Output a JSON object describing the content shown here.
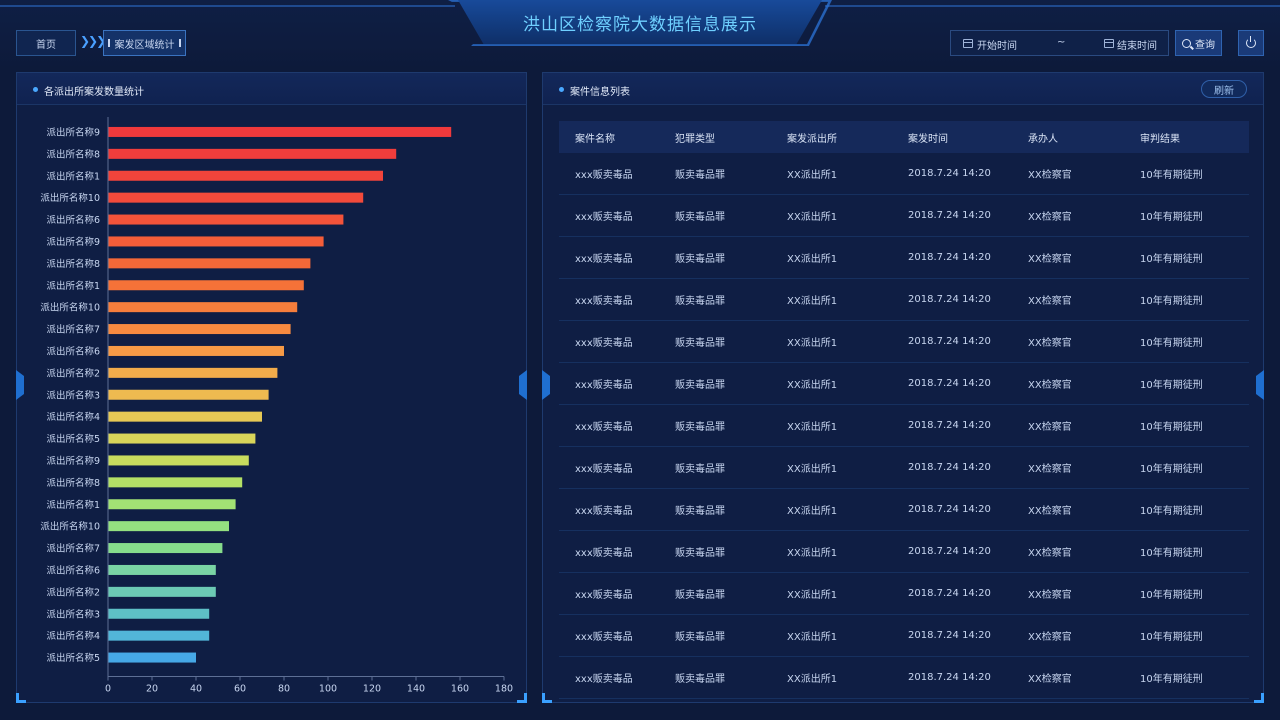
{
  "header": {
    "title": "洪山区检察院大数据信息展示",
    "breadcrumb": {
      "home": "首页",
      "current": "案发区域统计"
    },
    "date_range": {
      "start_placeholder": "开始时间",
      "separator": "~",
      "end_placeholder": "结束时间"
    },
    "query_label": "查询"
  },
  "left_panel": {
    "title": "各派出所案发数量统计"
  },
  "right_panel": {
    "title": "案件信息列表",
    "refresh_label": "刷新",
    "columns": [
      "案件名称",
      "犯罪类型",
      "案发派出所",
      "案发时间",
      "承办人",
      "审判结果"
    ],
    "rows": [
      [
        "xxx贩卖毒品",
        "贩卖毒品罪",
        "XX派出所1",
        "2018.7.24 14:20",
        "XX检察官",
        "10年有期徒刑"
      ],
      [
        "xxx贩卖毒品",
        "贩卖毒品罪",
        "XX派出所1",
        "2018.7.24 14:20",
        "XX检察官",
        "10年有期徒刑"
      ],
      [
        "xxx贩卖毒品",
        "贩卖毒品罪",
        "XX派出所1",
        "2018.7.24 14:20",
        "XX检察官",
        "10年有期徒刑"
      ],
      [
        "xxx贩卖毒品",
        "贩卖毒品罪",
        "XX派出所1",
        "2018.7.24 14:20",
        "XX检察官",
        "10年有期徒刑"
      ],
      [
        "xxx贩卖毒品",
        "贩卖毒品罪",
        "XX派出所1",
        "2018.7.24 14:20",
        "XX检察官",
        "10年有期徒刑"
      ],
      [
        "xxx贩卖毒品",
        "贩卖毒品罪",
        "XX派出所1",
        "2018.7.24 14:20",
        "XX检察官",
        "10年有期徒刑"
      ],
      [
        "xxx贩卖毒品",
        "贩卖毒品罪",
        "XX派出所1",
        "2018.7.24 14:20",
        "XX检察官",
        "10年有期徒刑"
      ],
      [
        "xxx贩卖毒品",
        "贩卖毒品罪",
        "XX派出所1",
        "2018.7.24 14:20",
        "XX检察官",
        "10年有期徒刑"
      ],
      [
        "xxx贩卖毒品",
        "贩卖毒品罪",
        "XX派出所1",
        "2018.7.24 14:20",
        "XX检察官",
        "10年有期徒刑"
      ],
      [
        "xxx贩卖毒品",
        "贩卖毒品罪",
        "XX派出所1",
        "2018.7.24 14:20",
        "XX检察官",
        "10年有期徒刑"
      ],
      [
        "xxx贩卖毒品",
        "贩卖毒品罪",
        "XX派出所1",
        "2018.7.24 14:20",
        "XX检察官",
        "10年有期徒刑"
      ],
      [
        "xxx贩卖毒品",
        "贩卖毒品罪",
        "XX派出所1",
        "2018.7.24 14:20",
        "XX检察官",
        "10年有期徒刑"
      ],
      [
        "xxx贩卖毒品",
        "贩卖毒品罪",
        "XX派出所1",
        "2018.7.24 14:20",
        "XX检察官",
        "10年有期徒刑"
      ]
    ]
  },
  "icons": [
    "calendar-icon",
    "search-icon",
    "power-icon",
    "double-chevron-right-icon"
  ],
  "colors": {
    "accent": "#3aa0ff",
    "title": "#6fd0ff",
    "bar_top": "#f0393c",
    "bar_bottom": "#3fa4e8"
  },
  "chart_data": {
    "type": "bar",
    "orientation": "horizontal",
    "categories": [
      "派出所名称9",
      "派出所名称8",
      "派出所名称1",
      "派出所名称10",
      "派出所名称6",
      "派出所名称9",
      "派出所名称8",
      "派出所名称1",
      "派出所名称10",
      "派出所名称7",
      "派出所名称6",
      "派出所名称2",
      "派出所名称3",
      "派出所名称4",
      "派出所名称5",
      "派出所名称9",
      "派出所名称8",
      "派出所名称1",
      "派出所名称10",
      "派出所名称7",
      "派出所名称6",
      "派出所名称2",
      "派出所名称3",
      "派出所名称4",
      "派出所名称5"
    ],
    "values": [
      156,
      131,
      125,
      116,
      107,
      98,
      92,
      89,
      86,
      83,
      80,
      77,
      73,
      70,
      67,
      64,
      61,
      58,
      55,
      52,
      49,
      49,
      46,
      46,
      40
    ],
    "x_ticks": [
      0,
      20,
      40,
      60,
      80,
      100,
      120,
      140,
      160,
      180
    ],
    "xlim": [
      0,
      180
    ],
    "grid": false,
    "colors": [
      "#f0393c",
      "#f03d3c",
      "#f2443b",
      "#f24a3b",
      "#f3533a",
      "#f45d39",
      "#f46838",
      "#f57238",
      "#f67e3c",
      "#f68a40",
      "#f69a46",
      "#f2ac4b",
      "#eeba50",
      "#e6c955",
      "#d8d55a",
      "#c8dc5e",
      "#b4e066",
      "#a2e274",
      "#94e080",
      "#86dc8c",
      "#7ad4a4",
      "#6ccab4",
      "#5ec0c6",
      "#52b6d8",
      "#46a8e6"
    ]
  }
}
